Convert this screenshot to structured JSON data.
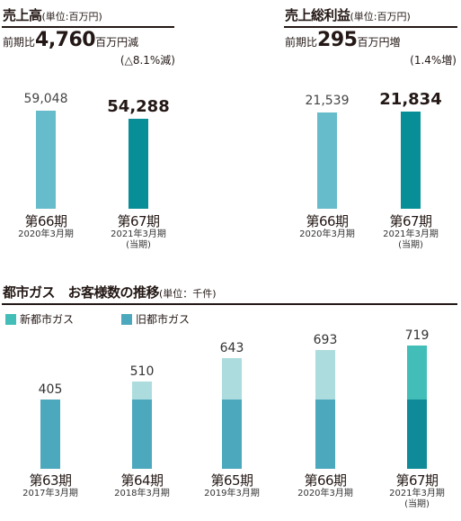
{
  "colors": {
    "prev": "#67bccb",
    "current": "#078e96",
    "gas_new": "#42bdb7",
    "gas_old": "#4ca8bd",
    "gas_new_light": "#acdcde",
    "gas_old_dark": "#0e8a98",
    "text": "#231815"
  },
  "sales": {
    "title": "売上高",
    "unit": "(単位:百万円)",
    "change_prefix": "前期比",
    "change_value": "4,760",
    "change_suffix": "百万円減",
    "change_pct": "(△8.1%減)"
  },
  "gross": {
    "title": "売上総利益",
    "unit": "(単位:百万円)",
    "change_prefix": "前期比",
    "change_value": "295",
    "change_suffix": "百万円増",
    "change_pct": "(1.4%増)"
  },
  "customers": {
    "title": "都市ガス　お客様数の推移",
    "unit": "(単位：千件)",
    "legend_new": "新都市ガス",
    "legend_old": "旧都市ガス"
  },
  "chart_data": [
    {
      "type": "bar",
      "title": "売上高",
      "unit": "百万円",
      "categories": [
        "第66期",
        "第67期"
      ],
      "category_sub": [
        "2020年3月期",
        "2021年3月期"
      ],
      "category_note": [
        "",
        "(当期)"
      ],
      "values": [
        59048,
        54288
      ],
      "value_labels": [
        "59,048",
        "54,288"
      ],
      "ylim": [
        0,
        62000
      ]
    },
    {
      "type": "bar",
      "title": "売上総利益",
      "unit": "百万円",
      "categories": [
        "第66期",
        "第67期"
      ],
      "category_sub": [
        "2020年3月期",
        "2021年3月期"
      ],
      "category_note": [
        "",
        "(当期)"
      ],
      "values": [
        21539,
        21834
      ],
      "value_labels": [
        "21,539",
        "21,834"
      ],
      "ylim": [
        0,
        22800
      ]
    },
    {
      "type": "bar",
      "stacked": true,
      "title": "都市ガス　お客様数の推移",
      "unit": "千件",
      "categories": [
        "第63期",
        "第64期",
        "第65期",
        "第66期",
        "第67期"
      ],
      "category_sub": [
        "2017年3月期",
        "2018年3月期",
        "2019年3月期",
        "2020年3月期",
        "2021年3月期"
      ],
      "category_note": [
        "",
        "",
        "",
        "",
        "(当期)"
      ],
      "series": [
        {
          "name": "旧都市ガス",
          "values": [
            405,
            405,
            405,
            405,
            405
          ]
        },
        {
          "name": "新都市ガス",
          "values": [
            0,
            105,
            238,
            288,
            314
          ]
        }
      ],
      "totals": [
        405,
        510,
        643,
        693,
        719
      ],
      "total_labels": [
        "405",
        "510",
        "643",
        "693",
        "719"
      ],
      "ylim": [
        0,
        760
      ]
    }
  ]
}
